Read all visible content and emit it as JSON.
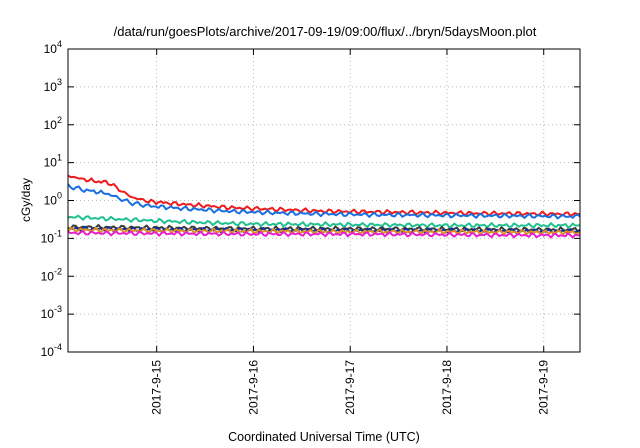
{
  "chart_data": {
    "type": "line",
    "title": "/data/run/goesPlots/archive/2017-09-19/09:00/flux/../bryn/5daysMoon.plot",
    "xlabel": "Coordinated Universal Time (UTC)",
    "ylabel": "cGy/day",
    "yscale": "log",
    "ylim": [
      0.0001,
      10000
    ],
    "xlim": [
      "2017-09-14 02:00",
      "2017-09-19 09:00"
    ],
    "grid": true,
    "legend": "none",
    "y_ticks": [
      {
        "value": 0.0001,
        "base": "10",
        "exp": "-4"
      },
      {
        "value": 0.001,
        "base": "10",
        "exp": "-3"
      },
      {
        "value": 0.01,
        "base": "10",
        "exp": "-2"
      },
      {
        "value": 0.1,
        "base": "10",
        "exp": "-1"
      },
      {
        "value": 1,
        "base": "10",
        "exp": "0"
      },
      {
        "value": 10,
        "base": "10",
        "exp": "1"
      },
      {
        "value": 100,
        "base": "10",
        "exp": "2"
      },
      {
        "value": 1000,
        "base": "10",
        "exp": "3"
      },
      {
        "value": 10000,
        "base": "10",
        "exp": "4"
      }
    ],
    "x_ticks": [
      {
        "date": "2017-09-15 00:00",
        "label": "2017-9-15"
      },
      {
        "date": "2017-09-16 00:00",
        "label": "2017-9-16"
      },
      {
        "date": "2017-09-17 00:00",
        "label": "2017-9-17"
      },
      {
        "date": "2017-09-18 00:00",
        "label": "2017-9-18"
      },
      {
        "date": "2017-09-19 00:00",
        "label": "2017-9-19"
      }
    ],
    "series": [
      {
        "color": "#ee1c1c",
        "x": [
          "2017-09-14 02:00",
          "2017-09-14 06:00",
          "2017-09-14 09:00",
          "2017-09-14 12:00",
          "2017-09-14 16:00",
          "2017-09-14 18:00",
          "2017-09-14 22:00",
          "2017-09-15 06:00",
          "2017-09-15 18:00",
          "2017-09-16 06:00",
          "2017-09-16 18:00",
          "2017-09-17 06:00",
          "2017-09-17 18:00",
          "2017-09-18 06:00",
          "2017-09-18 18:00",
          "2017-09-19 06:00",
          "2017-09-19 09:00"
        ],
        "y": [
          4.5,
          3.6,
          3.2,
          3.0,
          1.6,
          1.2,
          0.95,
          0.8,
          0.65,
          0.58,
          0.52,
          0.5,
          0.48,
          0.46,
          0.45,
          0.44,
          0.44
        ]
      },
      {
        "color": "#1a6fe0",
        "x": [
          "2017-09-14 02:00",
          "2017-09-14 06:00",
          "2017-09-14 09:00",
          "2017-09-14 12:00",
          "2017-09-14 16:00",
          "2017-09-14 18:00",
          "2017-09-14 22:00",
          "2017-09-15 06:00",
          "2017-09-15 18:00",
          "2017-09-16 06:00",
          "2017-09-16 18:00",
          "2017-09-17 06:00",
          "2017-09-17 18:00",
          "2017-09-18 06:00",
          "2017-09-18 18:00",
          "2017-09-19 06:00",
          "2017-09-19 09:00"
        ],
        "y": [
          2.4,
          1.9,
          1.7,
          1.5,
          1.0,
          0.85,
          0.72,
          0.62,
          0.52,
          0.47,
          0.44,
          0.42,
          0.41,
          0.4,
          0.39,
          0.38,
          0.38
        ]
      },
      {
        "color": "#20c090",
        "x": [
          "2017-09-14 02:00",
          "2017-09-14 12:00",
          "2017-09-15 00:00",
          "2017-09-15 12:00",
          "2017-09-16 00:00",
          "2017-09-17 00:00",
          "2017-09-18 00:00",
          "2017-09-19 00:00",
          "2017-09-19 09:00"
        ],
        "y": [
          0.37,
          0.33,
          0.29,
          0.26,
          0.24,
          0.23,
          0.22,
          0.22,
          0.22
        ]
      },
      {
        "color": "#3a3a3a",
        "x": [
          "2017-09-14 02:00",
          "2017-09-15 00:00",
          "2017-09-16 00:00",
          "2017-09-17 00:00",
          "2017-09-18 00:00",
          "2017-09-19 00:00",
          "2017-09-19 09:00"
        ],
        "y": [
          0.2,
          0.19,
          0.18,
          0.18,
          0.175,
          0.17,
          0.17
        ]
      },
      {
        "color": "#1030a0",
        "x": [
          "2017-09-14 02:00",
          "2017-09-15 00:00",
          "2017-09-16 00:00",
          "2017-09-17 00:00",
          "2017-09-18 00:00",
          "2017-09-19 00:00",
          "2017-09-19 09:00"
        ],
        "y": [
          0.18,
          0.17,
          0.165,
          0.16,
          0.16,
          0.155,
          0.155
        ]
      },
      {
        "color": "#e09020",
        "x": [
          "2017-09-14 02:00",
          "2017-09-15 00:00",
          "2017-09-16 00:00",
          "2017-09-17 00:00",
          "2017-09-18 00:00",
          "2017-09-19 00:00",
          "2017-09-19 09:00"
        ],
        "y": [
          0.17,
          0.16,
          0.155,
          0.15,
          0.15,
          0.145,
          0.145
        ]
      },
      {
        "color": "#e820d0",
        "x": [
          "2017-09-14 02:00",
          "2017-09-15 00:00",
          "2017-09-16 00:00",
          "2017-09-17 00:00",
          "2017-09-18 00:00",
          "2017-09-19 00:00",
          "2017-09-19 09:00"
        ],
        "y": [
          0.14,
          0.135,
          0.13,
          0.13,
          0.125,
          0.12,
          0.12
        ]
      }
    ]
  }
}
